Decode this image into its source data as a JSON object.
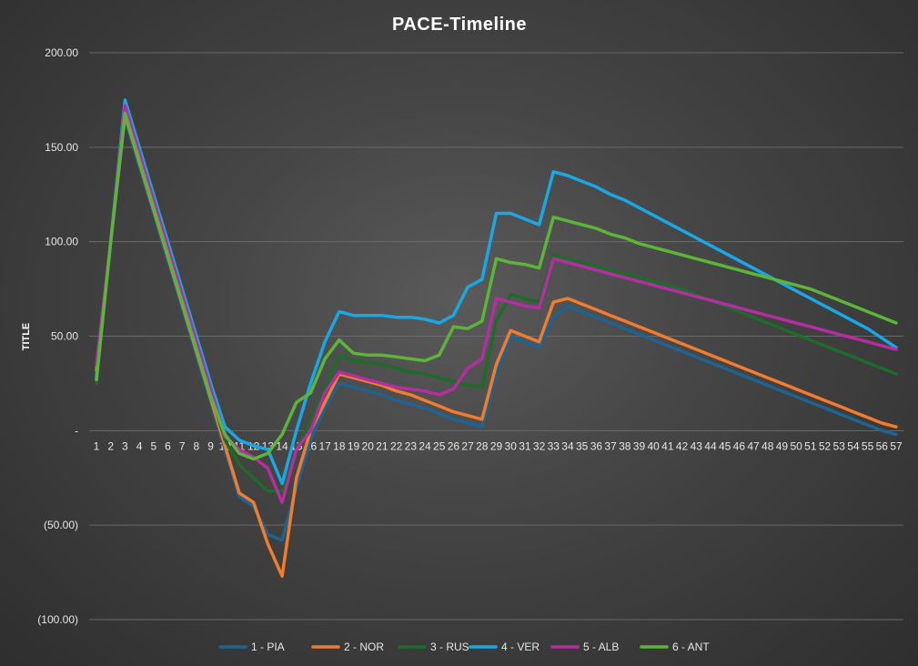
{
  "chart_data": {
    "type": "line",
    "title": "PACE-Timeline",
    "xlabel": "",
    "ylabel": "TITLE",
    "ylim": [
      -100,
      200
    ],
    "yticks": [
      {
        "value": 200,
        "label": "200.00"
      },
      {
        "value": 150,
        "label": "150.00"
      },
      {
        "value": 100,
        "label": "100.00"
      },
      {
        "value": 50,
        "label": "50.00"
      },
      {
        "value": 0,
        "label": "-"
      },
      {
        "value": -50,
        "label": "(50.00)"
      },
      {
        "value": -100,
        "label": "(100.00)"
      }
    ],
    "grid": true,
    "legend_position": "bottom",
    "categories": [
      "1",
      "2",
      "3",
      "4",
      "5",
      "6",
      "7",
      "8",
      "9",
      "10",
      "11",
      "12",
      "13",
      "14",
      "15",
      "16",
      "17",
      "18",
      "19",
      "20",
      "21",
      "22",
      "23",
      "24",
      "25",
      "26",
      "27",
      "28",
      "29",
      "30",
      "31",
      "32",
      "33",
      "34",
      "35",
      "36",
      "37",
      "38",
      "39",
      "40",
      "41",
      "42",
      "43",
      "44",
      "45",
      "46",
      "47",
      "48",
      "49",
      "50",
      "51",
      "52",
      "53",
      "54",
      "55",
      "56",
      "57"
    ],
    "series": [
      {
        "name": "1 - PIA",
        "color": "#1f6391",
        "values": [
          30,
          100,
          165,
          140,
          115,
          90,
          65,
          40,
          15,
          -10,
          -35,
          -40,
          -55,
          -58,
          -30,
          -5,
          12,
          25,
          23,
          21,
          19,
          16,
          14,
          12,
          9,
          6,
          4,
          2,
          30,
          50,
          47,
          44,
          60,
          66,
          63,
          60,
          57,
          54,
          51,
          48,
          45,
          42,
          39,
          36,
          33,
          30,
          27,
          24,
          21,
          18,
          15,
          12,
          9,
          6,
          3,
          0,
          -2
        ]
      },
      {
        "name": "2 - NOR",
        "color": "#f07c30",
        "values": [
          32,
          100,
          167,
          142,
          117,
          92,
          67,
          42,
          17,
          -8,
          -33,
          -38,
          -60,
          -77,
          -25,
          0,
          15,
          30,
          28,
          26,
          24,
          21,
          19,
          16,
          13,
          10,
          8,
          6,
          35,
          53,
          50,
          47,
          68,
          70,
          67,
          64,
          61,
          58,
          55,
          52,
          49,
          46,
          43,
          40,
          37,
          34,
          31,
          28,
          25,
          22,
          19,
          16,
          13,
          10,
          7,
          4,
          2
        ]
      },
      {
        "name": "3 - RUS",
        "color": "#1e6b2a",
        "values": [
          25,
          100,
          170,
          145,
          120,
          95,
          70,
          45,
          20,
          -5,
          -18,
          -25,
          -32,
          -32,
          -10,
          5,
          22,
          40,
          37,
          36,
          35,
          33,
          31,
          30,
          28,
          26,
          24,
          23,
          58,
          72,
          70,
          68,
          93,
          91,
          89,
          87,
          85,
          83,
          81,
          79,
          77,
          75,
          72,
          69,
          66,
          63,
          60,
          57,
          54,
          51,
          48,
          45,
          42,
          39,
          36,
          33,
          30
        ]
      },
      {
        "name": "4 - VER",
        "color": "#1aa7e6",
        "values": [
          28,
          100,
          175,
          150,
          125,
          100,
          75,
          50,
          25,
          2,
          -5,
          -8,
          -10,
          -28,
          0,
          25,
          47,
          63,
          61,
          61,
          61,
          60,
          60,
          59,
          57,
          61,
          76,
          80,
          115,
          115,
          112,
          109,
          137,
          135,
          132,
          129,
          125,
          122,
          118,
          114,
          110,
          106,
          102,
          98,
          94,
          90,
          86,
          82,
          78,
          74,
          70,
          66,
          62,
          58,
          54,
          49,
          44
        ]
      },
      {
        "name": "5 - ALB",
        "color": "#b32fa0",
        "values": [
          35,
          100,
          172,
          147,
          122,
          97,
          72,
          47,
          22,
          -3,
          -10,
          -14,
          -20,
          -38,
          -10,
          0,
          20,
          31,
          29,
          27,
          25,
          23,
          22,
          21,
          19,
          22,
          33,
          38,
          70,
          68,
          66,
          65,
          91,
          89,
          87,
          85,
          83,
          81,
          79,
          77,
          75,
          73,
          71,
          69,
          67,
          65,
          63,
          61,
          59,
          57,
          55,
          53,
          51,
          49,
          47,
          45,
          43
        ]
      },
      {
        "name": "6 - ANT",
        "color": "#5cb539",
        "values": [
          27,
          100,
          168,
          143,
          118,
          93,
          68,
          43,
          18,
          -2,
          -12,
          -15,
          -12,
          -2,
          15,
          20,
          38,
          48,
          41,
          40,
          40,
          39,
          38,
          37,
          40,
          55,
          54,
          58,
          91,
          89,
          88,
          86,
          113,
          111,
          109,
          107,
          104,
          102,
          99,
          97,
          95,
          93,
          91,
          89,
          87,
          85,
          83,
          81,
          79,
          77,
          75,
          72,
          69,
          66,
          63,
          60,
          57
        ]
      }
    ]
  }
}
